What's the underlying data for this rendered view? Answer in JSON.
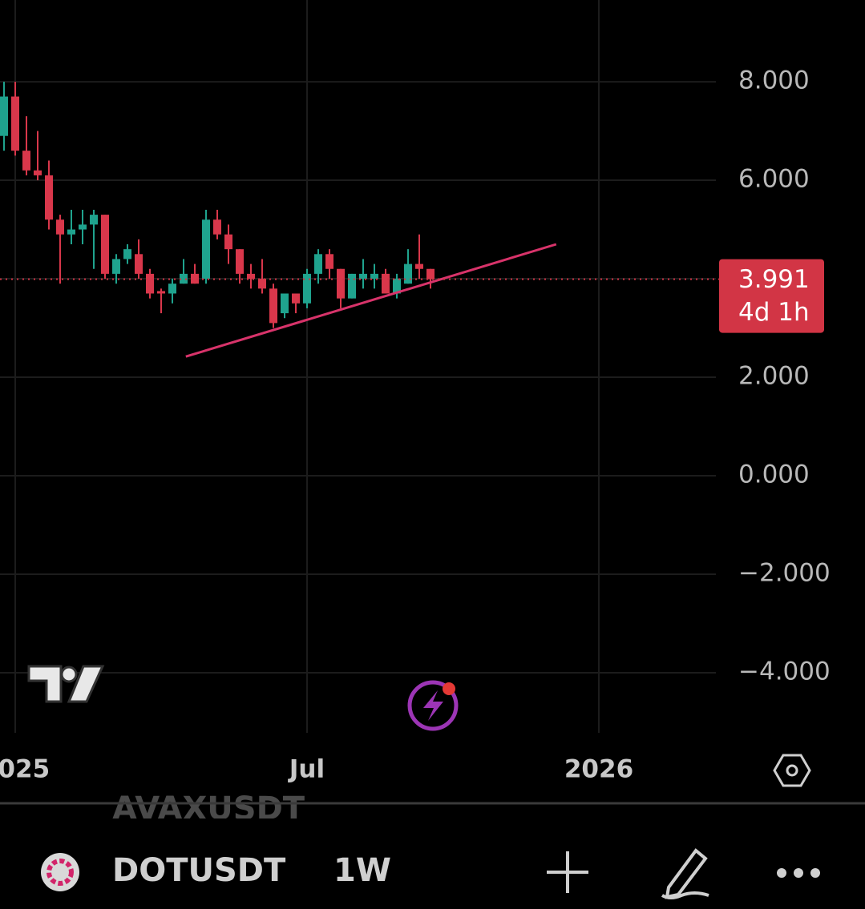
{
  "chart_data": {
    "type": "candlestick",
    "up_color": "#1fa38e",
    "down_color": "#d9374b",
    "candles": [
      {
        "o": 6.9,
        "h": 8.0,
        "l": 6.6,
        "c": 7.7
      },
      {
        "o": 7.7,
        "h": 8.0,
        "l": 6.5,
        "c": 6.6
      },
      {
        "o": 6.6,
        "h": 7.3,
        "l": 6.1,
        "c": 6.2
      },
      {
        "o": 6.2,
        "h": 7.0,
        "l": 6.0,
        "c": 6.1
      },
      {
        "o": 6.1,
        "h": 6.4,
        "l": 5.0,
        "c": 5.2
      },
      {
        "o": 5.2,
        "h": 5.3,
        "l": 3.9,
        "c": 4.9
      },
      {
        "o": 4.9,
        "h": 5.4,
        "l": 4.7,
        "c": 5.0
      },
      {
        "o": 5.0,
        "h": 5.4,
        "l": 4.7,
        "c": 5.1
      },
      {
        "o": 5.1,
        "h": 5.4,
        "l": 4.2,
        "c": 5.3
      },
      {
        "o": 5.3,
        "h": 5.3,
        "l": 4.0,
        "c": 4.1
      },
      {
        "o": 4.1,
        "h": 4.5,
        "l": 3.9,
        "c": 4.4
      },
      {
        "o": 4.4,
        "h": 4.7,
        "l": 4.3,
        "c": 4.6
      },
      {
        "o": 4.5,
        "h": 4.8,
        "l": 4.0,
        "c": 4.1
      },
      {
        "o": 4.1,
        "h": 4.2,
        "l": 3.6,
        "c": 3.7
      },
      {
        "o": 3.75,
        "h": 3.8,
        "l": 3.3,
        "c": 3.7
      },
      {
        "o": 3.7,
        "h": 4.0,
        "l": 3.5,
        "c": 3.9
      },
      {
        "o": 3.9,
        "h": 4.4,
        "l": 3.9,
        "c": 4.1
      },
      {
        "o": 4.1,
        "h": 4.3,
        "l": 3.9,
        "c": 3.9
      },
      {
        "o": 4.0,
        "h": 5.4,
        "l": 3.9,
        "c": 5.2
      },
      {
        "o": 5.2,
        "h": 5.4,
        "l": 4.8,
        "c": 4.9
      },
      {
        "o": 4.9,
        "h": 5.1,
        "l": 4.3,
        "c": 4.6
      },
      {
        "o": 4.6,
        "h": 4.6,
        "l": 3.9,
        "c": 4.1
      },
      {
        "o": 4.1,
        "h": 4.3,
        "l": 3.8,
        "c": 4.0
      },
      {
        "o": 4.0,
        "h": 4.4,
        "l": 3.7,
        "c": 3.8
      },
      {
        "o": 3.8,
        "h": 3.9,
        "l": 3.0,
        "c": 3.1
      },
      {
        "o": 3.3,
        "h": 3.7,
        "l": 3.2,
        "c": 3.7
      },
      {
        "o": 3.7,
        "h": 3.7,
        "l": 3.3,
        "c": 3.5
      },
      {
        "o": 3.5,
        "h": 4.2,
        "l": 3.4,
        "c": 4.1
      },
      {
        "o": 4.1,
        "h": 4.6,
        "l": 3.9,
        "c": 4.5
      },
      {
        "o": 4.5,
        "h": 4.6,
        "l": 4.0,
        "c": 4.2
      },
      {
        "o": 4.2,
        "h": 4.2,
        "l": 3.4,
        "c": 3.6
      },
      {
        "o": 3.6,
        "h": 4.1,
        "l": 3.6,
        "c": 4.1
      },
      {
        "o": 4.0,
        "h": 4.4,
        "l": 3.8,
        "c": 4.1
      },
      {
        "o": 4.0,
        "h": 4.3,
        "l": 3.8,
        "c": 4.1
      },
      {
        "o": 4.1,
        "h": 4.2,
        "l": 3.7,
        "c": 3.7
      },
      {
        "o": 3.7,
        "h": 4.1,
        "l": 3.6,
        "c": 4.0
      },
      {
        "o": 3.9,
        "h": 4.6,
        "l": 3.9,
        "c": 4.3
      },
      {
        "o": 4.3,
        "h": 4.9,
        "l": 4.0,
        "c": 4.2
      },
      {
        "o": 4.2,
        "h": 4.2,
        "l": 3.8,
        "c": 3.991
      }
    ],
    "ylim": [
      -5.22,
      9.66
    ],
    "yticks": [
      {
        "value": 8,
        "label": "8.000"
      },
      {
        "value": 6,
        "label": "6.000"
      },
      {
        "value": 2,
        "label": "2.000"
      },
      {
        "value": 0,
        "label": "0.000"
      },
      {
        "value": -2,
        "label": "−2.000"
      },
      {
        "value": -4,
        "label": "−4.000"
      }
    ],
    "grid_yticks": [
      8,
      6,
      4,
      2,
      0,
      -2,
      -4
    ],
    "xticks": [
      {
        "value": 1,
        "label": "2025"
      },
      {
        "value": 27,
        "label": "Jul"
      },
      {
        "value": 53,
        "label": "2026"
      }
    ],
    "last_price": 3.991,
    "countdown": "4d 1h",
    "price_color": "#d23545",
    "trendline": {
      "color": "#d8336a",
      "x": [
        16.2,
        49.2
      ],
      "y": [
        2.42,
        4.7
      ]
    }
  },
  "toolbar": {
    "previous_symbol": "AVAXUSDT",
    "symbol": "DOTUSDT",
    "interval": "1W"
  }
}
